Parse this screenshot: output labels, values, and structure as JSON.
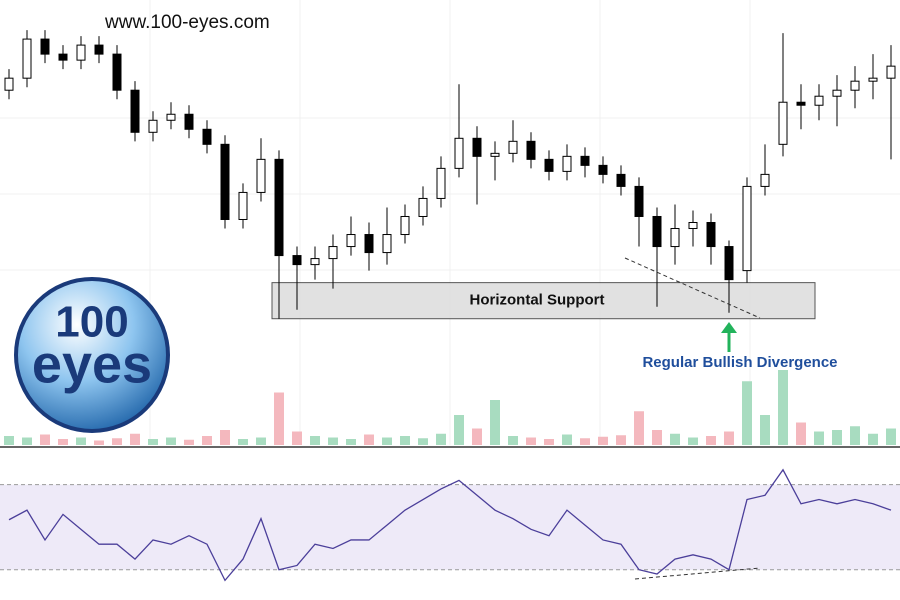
{
  "watermark": "www.100-eyes.com",
  "logo": {
    "top": "100",
    "bottom": "eyes"
  },
  "chart_data": {
    "type": "candlestick",
    "open": [
      118,
      122,
      135,
      130,
      128,
      133,
      130,
      118,
      104,
      108,
      110,
      105,
      100,
      75,
      84,
      95,
      63,
      60,
      62,
      66,
      70,
      64,
      70,
      76,
      82,
      92,
      102,
      96,
      97,
      101,
      95,
      91,
      96,
      93,
      90,
      86,
      76,
      66,
      72,
      74,
      66,
      58,
      86,
      100,
      114,
      113,
      116,
      118,
      121,
      122
    ],
    "high": [
      125,
      138,
      138,
      133,
      136,
      136,
      133,
      121,
      111,
      114,
      113,
      108,
      103,
      87,
      102,
      98,
      66,
      66,
      70,
      76,
      74,
      79,
      80,
      86,
      96,
      120,
      106,
      101,
      108,
      104,
      98,
      100,
      99,
      96,
      93,
      89,
      79,
      80,
      78,
      77,
      68,
      89,
      100,
      137,
      120,
      120,
      123,
      126,
      130,
      133
    ],
    "low": [
      115,
      119,
      127,
      125,
      125,
      127,
      115,
      101,
      101,
      105,
      102,
      97,
      72,
      72,
      81,
      42,
      45,
      55,
      52,
      63,
      58,
      60,
      67,
      73,
      79,
      89,
      80,
      88,
      94,
      92,
      88,
      88,
      89,
      87,
      83,
      66,
      46,
      60,
      66,
      60,
      44,
      54,
      83,
      96,
      105,
      108,
      106,
      112,
      115,
      95
    ],
    "close": [
      122,
      135,
      130,
      128,
      133,
      130,
      118,
      104,
      108,
      110,
      105,
      100,
      75,
      84,
      95,
      63,
      60,
      62,
      66,
      70,
      64,
      70,
      76,
      82,
      92,
      102,
      96,
      97,
      101,
      95,
      91,
      96,
      93,
      90,
      86,
      76,
      66,
      72,
      74,
      66,
      55,
      86,
      90,
      114,
      113,
      116,
      118,
      121,
      122,
      126
    ],
    "ylim": [
      0,
      148
    ],
    "up_color": "#ffffff",
    "down_color": "#000000",
    "support": {
      "label": "Horizontal Support",
      "range": [
        42,
        54
      ],
      "color": "#d9d9d9"
    },
    "annotation": "Regular Bullish Divergence",
    "volume": {
      "values": [
        12,
        10,
        14,
        8,
        10,
        6,
        9,
        15,
        8,
        10,
        7,
        12,
        20,
        8,
        10,
        70,
        18,
        12,
        10,
        8,
        14,
        10,
        12,
        9,
        15,
        40,
        22,
        60,
        12,
        10,
        8,
        14,
        9,
        11,
        13,
        45,
        20,
        15,
        10,
        12,
        18,
        85,
        40,
        100,
        30,
        18,
        20,
        25,
        15,
        22
      ],
      "ylim": [
        0,
        100
      ],
      "up_color": "#a8dcc0",
      "down_color": "#f4b8be"
    },
    "rsi": {
      "values": [
        53.5,
        58,
        44,
        56,
        49,
        42,
        42,
        35,
        44,
        42,
        46,
        42,
        25,
        35,
        54,
        30,
        32,
        42,
        40,
        44,
        44,
        51,
        58,
        63,
        68,
        72,
        65,
        58,
        54,
        49,
        46,
        58,
        51,
        44,
        42,
        30,
        28,
        35,
        37,
        35,
        30,
        63,
        65,
        77,
        61,
        63,
        61,
        63,
        61,
        58
      ],
      "ylim": [
        20,
        83
      ],
      "levels": [
        30,
        70
      ],
      "color": "#4b3f9a",
      "band_color": "#eeeaf8"
    }
  }
}
